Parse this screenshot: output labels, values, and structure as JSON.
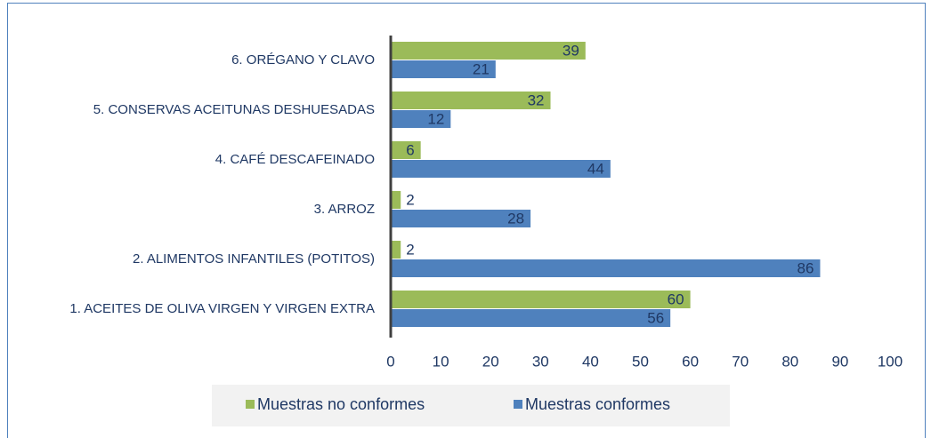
{
  "chart_data": {
    "type": "bar",
    "orientation": "horizontal",
    "categories": [
      "1. ACEITES DE OLIVA VIRGEN Y VIRGEN EXTRA",
      "2. ALIMENTOS INFANTILES (POTITOS)",
      "3. ARROZ",
      "4. CAFÉ DESCAFEINADO",
      "5. CONSERVAS ACEITUNAS DESHUESADAS",
      "6. ORÉGANO Y CLAVO"
    ],
    "series": [
      {
        "name": "Muestras no conformes",
        "color": "#9bbb59",
        "values": [
          60,
          2,
          2,
          6,
          32,
          39
        ]
      },
      {
        "name": "Muestras conformes",
        "color": "#4f81bd",
        "values": [
          56,
          86,
          28,
          44,
          12,
          21
        ]
      }
    ],
    "xlim": [
      0,
      100
    ],
    "xticks": [
      0,
      10,
      20,
      30,
      40,
      50,
      60,
      70,
      80,
      90,
      100
    ],
    "grid": false,
    "legend": "bottom"
  }
}
